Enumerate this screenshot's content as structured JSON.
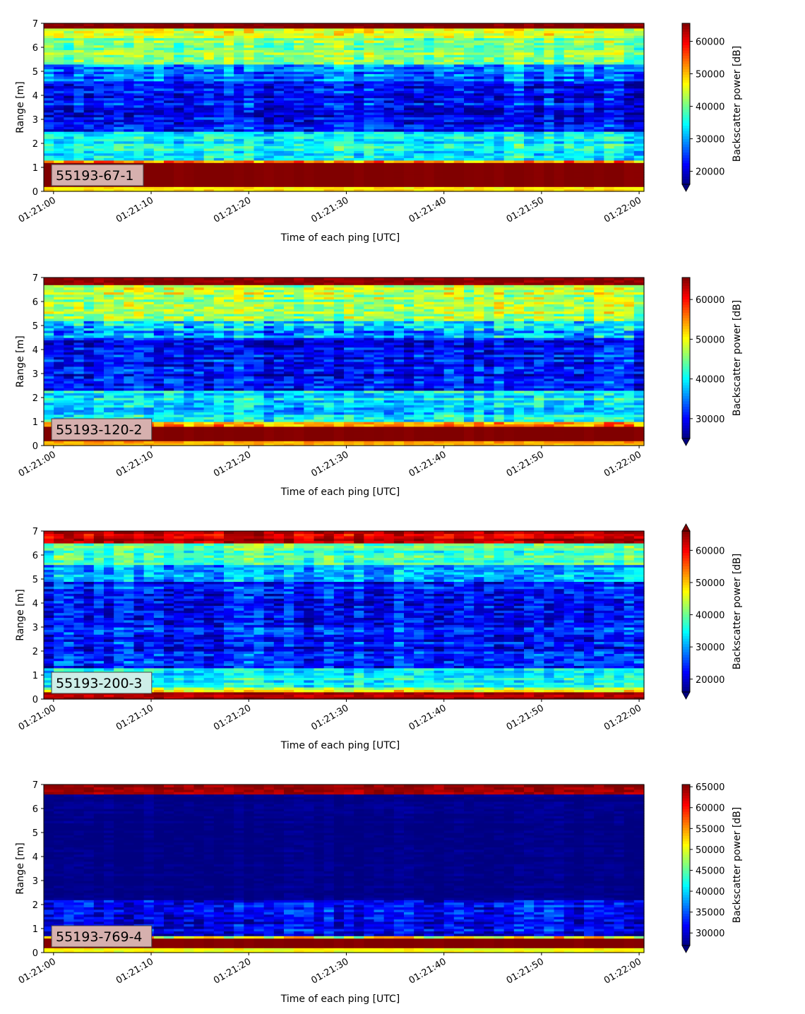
{
  "chart_data": [
    {
      "type": "heatmap",
      "label": "55193-67-1",
      "label_box_color": "#d6b0ae",
      "xlabel": "Time of each ping [UTC]",
      "ylabel": "Range [m]",
      "x_ticks": [
        "01:21:00",
        "01:21:10",
        "01:21:20",
        "01:21:30",
        "01:21:40",
        "01:21:50",
        "01:22:00"
      ],
      "xlim": [
        "01:20:59",
        "01:22:00.5"
      ],
      "ylim": [
        0,
        7
      ],
      "y_ticks": [
        0,
        1,
        2,
        3,
        4,
        5,
        6,
        7
      ],
      "colorbar": {
        "label": "Backscatter power [dB]",
        "min": 16000,
        "max": 65535,
        "ticks": [
          20000,
          30000,
          40000,
          50000,
          60000
        ],
        "extend": "min"
      },
      "profile": [
        {
          "range": [
            0.0,
            0.2
          ],
          "level": 0.65,
          "spread": 0.05
        },
        {
          "range": [
            0.2,
            1.2
          ],
          "level": 1.0,
          "spread": 0.0
        },
        {
          "range": [
            1.2,
            1.35
          ],
          "level": 0.7,
          "spread": 0.15
        },
        {
          "range": [
            1.35,
            2.5
          ],
          "level": 0.38,
          "spread": 0.1
        },
        {
          "range": [
            2.5,
            4.6
          ],
          "level": 0.12,
          "spread": 0.12
        },
        {
          "range": [
            4.6,
            5.3
          ],
          "level": 0.25,
          "spread": 0.12
        },
        {
          "range": [
            5.3,
            6.4
          ],
          "level": 0.52,
          "spread": 0.1
        },
        {
          "range": [
            6.4,
            6.8
          ],
          "level": 0.62,
          "spread": 0.1
        },
        {
          "range": [
            6.8,
            7.0
          ],
          "level": 1.0,
          "spread": 0.05
        }
      ]
    },
    {
      "type": "heatmap",
      "label": "55193-120-2",
      "label_box_color": "#d6b0ae",
      "xlabel": "Time of each ping [UTC]",
      "ylabel": "Range [m]",
      "x_ticks": [
        "01:21:00",
        "01:21:10",
        "01:21:20",
        "01:21:30",
        "01:21:40",
        "01:21:50",
        "01:22:00"
      ],
      "xlim": [
        "01:20:59",
        "01:22:00.5"
      ],
      "ylim": [
        0,
        7
      ],
      "y_ticks": [
        0,
        1,
        2,
        3,
        4,
        5,
        6,
        7
      ],
      "colorbar": {
        "label": "Backscatter power [dB]",
        "min": 25000,
        "max": 65535,
        "ticks": [
          30000,
          40000,
          50000,
          60000
        ],
        "extend": "min"
      },
      "profile": [
        {
          "range": [
            0.0,
            0.2
          ],
          "level": 0.7,
          "spread": 0.05
        },
        {
          "range": [
            0.2,
            0.85
          ],
          "level": 1.0,
          "spread": 0.0
        },
        {
          "range": [
            0.85,
            1.05
          ],
          "level": 0.72,
          "spread": 0.1
        },
        {
          "range": [
            1.05,
            2.3
          ],
          "level": 0.35,
          "spread": 0.12
        },
        {
          "range": [
            2.3,
            4.5
          ],
          "level": 0.13,
          "spread": 0.12
        },
        {
          "range": [
            4.5,
            5.2
          ],
          "level": 0.3,
          "spread": 0.15
        },
        {
          "range": [
            5.2,
            6.7
          ],
          "level": 0.55,
          "spread": 0.12
        },
        {
          "range": [
            6.7,
            7.0
          ],
          "level": 1.0,
          "spread": 0.05
        }
      ]
    },
    {
      "type": "heatmap",
      "label": "55193-200-3",
      "label_box_color": "#cdeee8",
      "xlabel": "Time of each ping [UTC]",
      "ylabel": "Range [m]",
      "x_ticks": [
        "01:21:00",
        "01:21:10",
        "01:21:20",
        "01:21:30",
        "01:21:40",
        "01:21:50",
        "01:22:00"
      ],
      "xlim": [
        "01:20:59",
        "01:22:00.5"
      ],
      "ylim": [
        0,
        7
      ],
      "y_ticks": [
        0,
        1,
        2,
        3,
        4,
        5,
        6,
        7
      ],
      "colorbar": {
        "label": "Backscatter power [dB]",
        "min": 16000,
        "max": 66000,
        "ticks": [
          20000,
          30000,
          40000,
          50000,
          60000
        ],
        "extend": "both"
      },
      "profile": [
        {
          "range": [
            0.0,
            0.3
          ],
          "level": 0.95,
          "spread": 0.05
        },
        {
          "range": [
            0.3,
            0.55
          ],
          "level": 0.6,
          "spread": 0.1
        },
        {
          "range": [
            0.55,
            1.3
          ],
          "level": 0.38,
          "spread": 0.1
        },
        {
          "range": [
            1.3,
            4.9
          ],
          "level": 0.15,
          "spread": 0.12
        },
        {
          "range": [
            4.9,
            5.6
          ],
          "level": 0.3,
          "spread": 0.12
        },
        {
          "range": [
            5.6,
            6.5
          ],
          "level": 0.45,
          "spread": 0.1
        },
        {
          "range": [
            6.5,
            7.0
          ],
          "level": 0.93,
          "spread": 0.07
        }
      ]
    },
    {
      "type": "heatmap",
      "label": "55193-769-4",
      "label_box_color": "#d6b0ae",
      "xlabel": "Time of each ping [UTC]",
      "ylabel": "Range [m]",
      "x_ticks": [
        "01:21:00",
        "01:21:10",
        "01:21:20",
        "01:21:30",
        "01:21:40",
        "01:21:50",
        "01:22:00"
      ],
      "xlim": [
        "01:20:59",
        "01:22:00.5"
      ],
      "ylim": [
        0,
        7
      ],
      "y_ticks": [
        0,
        1,
        2,
        3,
        4,
        5,
        6,
        7
      ],
      "colorbar": {
        "label": "Backscatter power [dB]",
        "min": 27000,
        "max": 65535,
        "ticks": [
          30000,
          35000,
          40000,
          45000,
          50000,
          55000,
          60000,
          65000
        ],
        "extend": "min"
      },
      "profile": [
        {
          "range": [
            0.0,
            0.2
          ],
          "level": 0.6,
          "spread": 0.05
        },
        {
          "range": [
            0.2,
            0.6
          ],
          "level": 1.0,
          "spread": 0.0
        },
        {
          "range": [
            0.6,
            0.75
          ],
          "level": 0.55,
          "spread": 0.15
        },
        {
          "range": [
            0.75,
            2.2
          ],
          "level": 0.12,
          "spread": 0.1
        },
        {
          "range": [
            2.2,
            6.6
          ],
          "level": 0.01,
          "spread": 0.02
        },
        {
          "range": [
            6.6,
            7.0
          ],
          "level": 0.98,
          "spread": 0.05
        }
      ]
    }
  ]
}
